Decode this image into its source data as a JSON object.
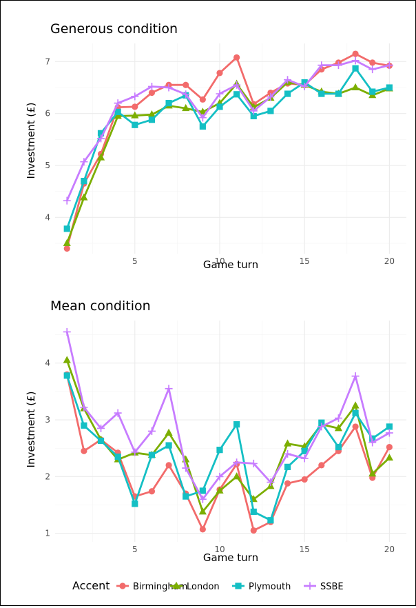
{
  "colors": {
    "Birmingham": "#F26B6B",
    "London": "#7CAE00",
    "Plymouth": "#14BFC4",
    "SSBE": "#C77CFF"
  },
  "markers": {
    "Birmingham": "circle",
    "London": "triangle",
    "Plymouth": "square",
    "SSBE": "plus"
  },
  "legend": {
    "title": "Accent",
    "entries": [
      "Birmingham",
      "London",
      "Plymouth",
      "SSBE"
    ]
  },
  "chart_data": [
    {
      "type": "line",
      "title": "Generous condition",
      "xlabel": "Game turn",
      "ylabel": "Investment (£)",
      "x": [
        1,
        2,
        3,
        4,
        5,
        6,
        7,
        8,
        9,
        10,
        11,
        12,
        13,
        14,
        15,
        16,
        17,
        18,
        19,
        20
      ],
      "xlim": [
        0.3,
        21.0
      ],
      "ylim": [
        3.3,
        7.35
      ],
      "x_ticks": [
        5,
        10,
        15,
        20
      ],
      "y_ticks": [
        4,
        5,
        6,
        7
      ],
      "grid": true,
      "series": [
        {
          "name": "Birmingham",
          "values": [
            3.4,
            4.65,
            5.22,
            6.12,
            6.13,
            6.4,
            6.55,
            6.55,
            6.27,
            6.78,
            7.08,
            6.18,
            6.4,
            6.58,
            6.55,
            6.85,
            6.98,
            7.15,
            6.98,
            6.92
          ]
        },
        {
          "name": "London",
          "values": [
            3.5,
            4.38,
            5.15,
            5.95,
            5.96,
            5.98,
            6.15,
            6.1,
            6.03,
            6.2,
            6.57,
            6.12,
            6.3,
            6.6,
            6.55,
            6.42,
            6.38,
            6.5,
            6.35,
            6.48
          ]
        },
        {
          "name": "Plymouth",
          "values": [
            3.78,
            4.7,
            5.62,
            6.03,
            5.78,
            5.88,
            6.2,
            6.35,
            5.75,
            6.13,
            6.37,
            5.95,
            6.05,
            6.38,
            6.6,
            6.38,
            6.38,
            6.87,
            6.42,
            6.5
          ]
        },
        {
          "name": "SSBE",
          "values": [
            4.32,
            5.07,
            5.52,
            6.2,
            6.33,
            6.52,
            6.5,
            6.37,
            5.92,
            6.38,
            6.55,
            6.05,
            6.32,
            6.65,
            6.52,
            6.93,
            6.93,
            7.02,
            6.85,
            6.93
          ]
        }
      ]
    },
    {
      "type": "line",
      "title": "Mean condition",
      "xlabel": "Game turn",
      "ylabel": "Investment (£)",
      "x": [
        1,
        2,
        3,
        4,
        5,
        6,
        7,
        8,
        9,
        10,
        11,
        12,
        13,
        14,
        15,
        16,
        17,
        18,
        19,
        20
      ],
      "xlim": [
        0.3,
        21.0
      ],
      "ylim": [
        0.85,
        4.75
      ],
      "x_ticks": [
        5,
        10,
        15,
        20
      ],
      "y_ticks": [
        1,
        2,
        3,
        4
      ],
      "grid": true,
      "series": [
        {
          "name": "Birmingham",
          "values": [
            3.8,
            2.45,
            2.65,
            2.42,
            1.65,
            1.74,
            2.2,
            1.7,
            1.07,
            1.77,
            2.22,
            1.05,
            1.2,
            1.88,
            1.95,
            2.2,
            2.45,
            2.88,
            1.98,
            2.52
          ]
        },
        {
          "name": "London",
          "values": [
            4.05,
            3.2,
            2.65,
            2.3,
            2.42,
            2.38,
            2.77,
            2.3,
            1.38,
            1.75,
            2.0,
            1.6,
            1.83,
            2.58,
            2.53,
            2.92,
            2.85,
            3.25,
            2.05,
            2.33
          ]
        },
        {
          "name": "Plymouth",
          "values": [
            3.78,
            2.9,
            2.63,
            2.35,
            1.52,
            2.38,
            2.55,
            1.65,
            1.75,
            2.47,
            2.92,
            1.38,
            1.23,
            2.17,
            2.45,
            2.95,
            2.52,
            3.12,
            2.67,
            2.88
          ]
        },
        {
          "name": "SSBE",
          "values": [
            4.55,
            3.22,
            2.85,
            3.12,
            2.43,
            2.8,
            3.55,
            2.15,
            1.6,
            2.0,
            2.25,
            2.23,
            1.9,
            2.4,
            2.32,
            2.88,
            3.03,
            3.77,
            2.6,
            2.77
          ]
        }
      ]
    }
  ]
}
